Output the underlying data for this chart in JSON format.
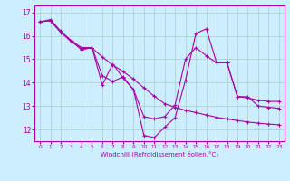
{
  "xlabel": "Windchill (Refroidissement éolien,°C)",
  "background_color": "#cceeff",
  "grid_color": "#aacccc",
  "line_color": "#aa00aa",
  "xlim": [
    -0.5,
    23.5
  ],
  "ylim": [
    11.5,
    17.3
  ],
  "yticks": [
    12,
    13,
    14,
    15,
    16,
    17
  ],
  "xticks": [
    0,
    1,
    2,
    3,
    4,
    5,
    6,
    7,
    8,
    9,
    10,
    11,
    12,
    13,
    14,
    15,
    16,
    17,
    18,
    19,
    20,
    21,
    22,
    23
  ],
  "series": [
    [
      16.6,
      16.7,
      16.2,
      15.8,
      15.4,
      15.5,
      13.9,
      14.8,
      14.2,
      13.7,
      11.75,
      11.65,
      12.1,
      12.5,
      14.1,
      16.1,
      16.3,
      14.85,
      14.85,
      13.4,
      13.4,
      13.0,
      12.95,
      12.9
    ],
    [
      16.6,
      16.65,
      16.15,
      15.8,
      15.5,
      15.5,
      14.3,
      14.05,
      14.25,
      13.7,
      12.55,
      12.45,
      12.55,
      13.05,
      15.0,
      15.5,
      15.15,
      14.85,
      14.85,
      13.4,
      13.35,
      13.25,
      13.2,
      13.2
    ],
    [
      16.6,
      16.65,
      16.15,
      15.75,
      15.45,
      15.48,
      15.1,
      14.75,
      14.48,
      14.15,
      13.78,
      13.42,
      13.1,
      12.95,
      12.82,
      12.72,
      12.62,
      12.52,
      12.45,
      12.38,
      12.32,
      12.27,
      12.23,
      12.2
    ]
  ]
}
